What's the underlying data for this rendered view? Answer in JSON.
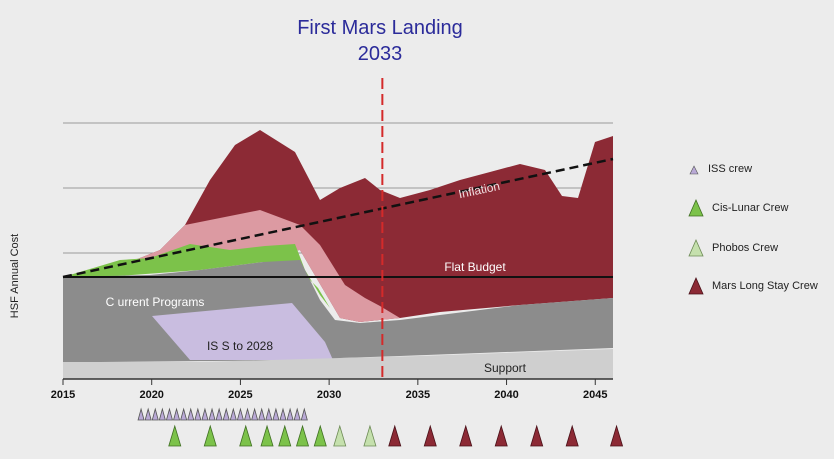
{
  "header": {
    "title_line1": "First Mars Landing",
    "title_line2": "2033"
  },
  "chart_data": {
    "type": "area",
    "ylabel": "HSF Annual Cost",
    "xlabel": "",
    "xlim": [
      2015,
      2046
    ],
    "x_ticks": [
      "2015",
      "2020",
      "2025",
      "2030",
      "2035",
      "2040",
      "2045"
    ],
    "grid": "horizontal",
    "legend_position": "right",
    "marker_line": {
      "x": 2033,
      "label": "First Mars Landing 2033",
      "color": "#d42a2a"
    },
    "reference_lines": [
      {
        "name": "Flat Budget",
        "style": "solid",
        "color": "#111111"
      },
      {
        "name": "Inflation",
        "style": "dashed",
        "color": "#111111"
      }
    ],
    "area_labels": [
      "Support",
      "IS S to 2028",
      "C urrent Programs",
      "Flat Budget",
      "Inflation"
    ],
    "legend": [
      {
        "label": "ISS crew",
        "color": "#b9a9d6"
      },
      {
        "label": "Cis-Lunar Crew",
        "color": "#7cc24a"
      },
      {
        "label": "Phobos Crew",
        "color": "#c5e0ad"
      },
      {
        "label": "Mars Long Stay Crew",
        "color": "#8c2a35"
      }
    ],
    "missions": {
      "iss_crew": [
        2019.4,
        2019.8,
        2020.2,
        2020.6,
        2021,
        2021.4,
        2021.8,
        2022.2,
        2022.6,
        2023,
        2023.4,
        2023.8,
        2024.2,
        2024.6,
        2025,
        2025.4,
        2025.8,
        2026.2,
        2026.6,
        2027,
        2027.4,
        2027.8,
        2028.2,
        2028.6
      ],
      "cis_lunar_crew": [
        2021.3,
        2023.3,
        2025.3,
        2026.5,
        2027.5,
        2028.5,
        2029.5
      ],
      "phobos_crew": [
        2030.6,
        2032.3
      ],
      "mars_long_stay_crew": [
        2033.7,
        2035.7,
        2037.7,
        2039.7,
        2041.7,
        2043.7,
        2046.2
      ]
    }
  },
  "colors": {
    "background": "#ececec",
    "grid": "#9a9a9a",
    "support": "#cfcfcf",
    "current_programs": "#8c8c8c",
    "iss": "#c9bde0",
    "cis_lunar": "#7cc24a",
    "phobos": "#dc9aa2",
    "mars": "#8c2a35"
  }
}
